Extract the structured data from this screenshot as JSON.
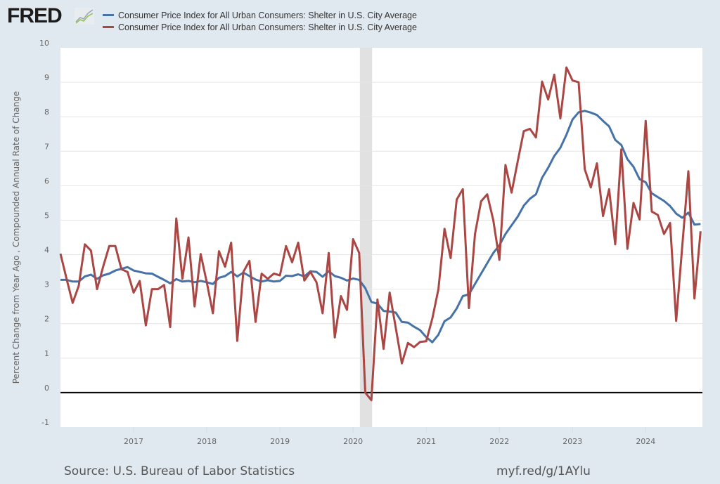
{
  "header": {
    "logo_text": "FRED",
    "logo_icon": "line-chart-icon"
  },
  "legend": [
    {
      "label": "Consumer Price Index for All Urban Consumers: Shelter in U.S. City Average",
      "color": "#4572a7"
    },
    {
      "label": "Consumer Price Index for All Urban Consumers: Shelter in U.S. City Average",
      "color": "#aa4643"
    }
  ],
  "footer": {
    "source": "Source: U.S. Bureau of Labor Statistics",
    "link": "myf.red/g/1AYlu"
  },
  "chart_data": {
    "type": "line",
    "title": "",
    "xlabel": "",
    "ylabel": "Percent Change from Year Ago , Compounded Annual Rate of Change",
    "ylim": [
      -1,
      10
    ],
    "yticks": [
      "10",
      "9",
      "8",
      "7",
      "6",
      "5",
      "4",
      "3",
      "2",
      "1",
      "0",
      "-1"
    ],
    "xticks": [
      "2017",
      "2018",
      "2019",
      "2020",
      "2021",
      "2022",
      "2023",
      "2024"
    ],
    "x_start": "2016-01",
    "x_end": "2024-10",
    "frequency": "monthly",
    "grid": true,
    "zero_line": true,
    "recession_shading": {
      "start": "2020-02",
      "end": "2020-04",
      "color": "#e1e1e1"
    },
    "series": [
      {
        "name": "Consumer Price Index for All Urban Consumers: Shelter in U.S. City Average",
        "transform": "Percent Change from Year Ago",
        "color": "#4572a7",
        "values": [
          3.27,
          3.27,
          3.22,
          3.22,
          3.37,
          3.42,
          3.3,
          3.4,
          3.45,
          3.54,
          3.59,
          3.64,
          3.54,
          3.5,
          3.46,
          3.45,
          3.36,
          3.27,
          3.17,
          3.29,
          3.22,
          3.24,
          3.2,
          3.24,
          3.2,
          3.15,
          3.33,
          3.38,
          3.5,
          3.37,
          3.48,
          3.38,
          3.28,
          3.22,
          3.26,
          3.22,
          3.24,
          3.39,
          3.38,
          3.43,
          3.37,
          3.52,
          3.5,
          3.36,
          3.52,
          3.38,
          3.33,
          3.25,
          3.31,
          3.27,
          3.03,
          2.63,
          2.58,
          2.37,
          2.35,
          2.32,
          2.05,
          2.03,
          1.91,
          1.81,
          1.61,
          1.46,
          1.68,
          2.07,
          2.18,
          2.44,
          2.8,
          2.85,
          3.15,
          3.45,
          3.75,
          4.05,
          4.27,
          4.6,
          4.85,
          5.1,
          5.42,
          5.62,
          5.75,
          6.23,
          6.52,
          6.86,
          7.1,
          7.48,
          7.92,
          8.13,
          8.17,
          8.12,
          8.05,
          7.88,
          7.72,
          7.33,
          7.18,
          6.77,
          6.55,
          6.19,
          6.1,
          5.78,
          5.67,
          5.56,
          5.41,
          5.19,
          5.07,
          5.22,
          4.87,
          4.89
        ]
      },
      {
        "name": "Consumer Price Index for All Urban Consumers: Shelter in U.S. City Average",
        "transform": "Compounded Annual Rate of Change",
        "color": "#aa4643",
        "values": [
          4.03,
          3.3,
          2.6,
          3.1,
          4.3,
          4.12,
          3.0,
          3.65,
          4.25,
          4.25,
          3.58,
          3.5,
          2.9,
          3.24,
          1.95,
          3.0,
          3.0,
          3.12,
          1.9,
          5.05,
          3.3,
          4.5,
          2.5,
          4.02,
          3.2,
          2.3,
          4.1,
          3.65,
          4.35,
          1.5,
          3.5,
          3.82,
          2.05,
          3.45,
          3.3,
          3.45,
          3.4,
          4.25,
          3.78,
          4.35,
          3.25,
          3.5,
          3.2,
          2.3,
          4.05,
          1.6,
          2.8,
          2.4,
          4.45,
          4.05,
          0.0,
          -0.22,
          2.7,
          1.27,
          2.9,
          1.88,
          0.85,
          1.44,
          1.32,
          1.47,
          1.49,
          2.15,
          3.0,
          4.75,
          3.9,
          5.6,
          5.9,
          2.45,
          4.6,
          5.55,
          5.75,
          5.0,
          3.85,
          6.6,
          5.8,
          6.7,
          7.58,
          7.65,
          7.4,
          9.02,
          8.5,
          9.22,
          7.95,
          9.43,
          9.05,
          9.0,
          6.48,
          5.95,
          6.65,
          5.12,
          5.9,
          4.3,
          7.05,
          4.17,
          5.5,
          5.02,
          7.88,
          5.25,
          5.15,
          4.6,
          4.92,
          2.08,
          4.25,
          6.42,
          2.73,
          4.68
        ]
      }
    ]
  }
}
